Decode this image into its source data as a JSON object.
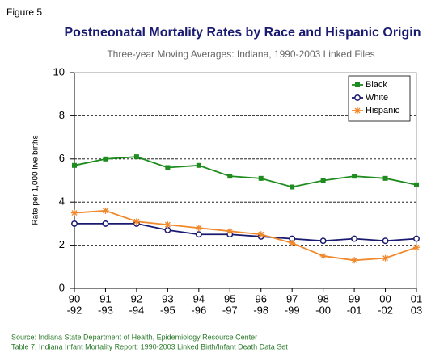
{
  "figure_label": "Figure 5",
  "chart_data": {
    "type": "line",
    "title": "Postneonatal Mortality Rates by Race and Hispanic Origin",
    "subtitle": "Three-year Moving Averages: Indiana, 1990-2003 Linked Files",
    "y_label": "Rate per 1,000 live births",
    "categories": [
      [
        "90",
        "-92"
      ],
      [
        "91",
        "-93"
      ],
      [
        "92",
        "-94"
      ],
      [
        "93",
        "-95"
      ],
      [
        "94",
        "-96"
      ],
      [
        "95",
        "-97"
      ],
      [
        "96",
        "-98"
      ],
      [
        "97",
        "-99"
      ],
      [
        "98",
        "-00"
      ],
      [
        "99",
        "-01"
      ],
      [
        "00",
        "-02"
      ],
      [
        "01",
        "03"
      ]
    ],
    "series": [
      {
        "name": "Black",
        "color": "#1e8c1e",
        "marker": "square",
        "values": [
          5.7,
          6.0,
          6.1,
          5.6,
          5.7,
          5.2,
          5.1,
          4.7,
          5.0,
          5.2,
          5.1,
          4.8
        ]
      },
      {
        "name": "White",
        "color": "#1a1a70",
        "marker": "circle",
        "values": [
          3.0,
          3.0,
          3.0,
          2.7,
          2.5,
          2.5,
          2.4,
          2.3,
          2.2,
          2.3,
          2.2,
          2.3
        ]
      },
      {
        "name": "Hispanic",
        "color": "#f0882c",
        "marker": "star",
        "values": [
          3.5,
          3.6,
          3.1,
          2.95,
          2.8,
          2.65,
          2.5,
          2.1,
          1.5,
          1.3,
          1.4,
          1.9
        ]
      }
    ],
    "ylim": [
      0,
      10
    ],
    "yticks": [
      0,
      2,
      4,
      6,
      8,
      10
    ],
    "grid": true,
    "legend": "top-right"
  },
  "source": [
    "Source: Indiana State Department of Health, Epidemiology Resource Center",
    "Table 7, Indiana Infant Mortality Report: 1990-2003 Linked Birth/Infant Death Data Set"
  ]
}
